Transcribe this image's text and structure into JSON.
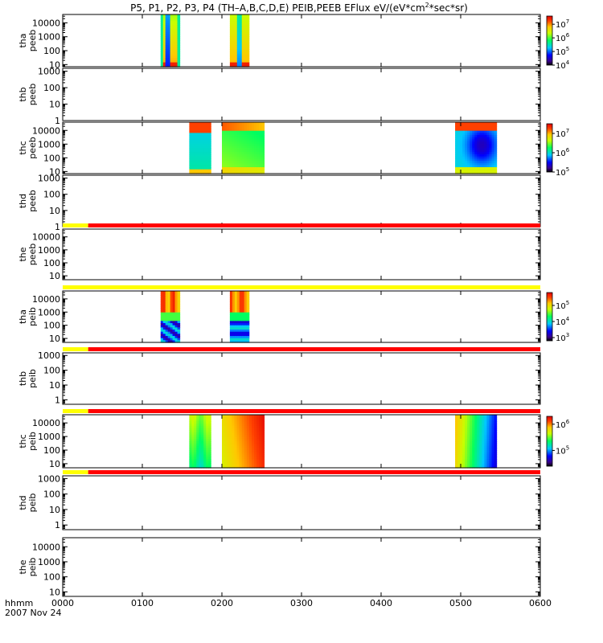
{
  "chart_data": {
    "type": "heatmap",
    "title": {
      "main": "P5, P1, P2, P3, P4 (TH–A,B,C,D,E) PEIB,PEEB EFlux eV/(eV*cm",
      "sup": "2",
      "tail": "*sec*sr)"
    },
    "xaxis": {
      "label": "hhmm",
      "date": "2007 Nov 24",
      "range_hhmm": [
        0,
        600
      ],
      "ticks": [
        "0000",
        "0100",
        "0200",
        "0300",
        "0400",
        "0500",
        "0600"
      ]
    },
    "panels": [
      {
        "label": [
          "tha",
          "peeb"
        ],
        "ylog": true,
        "yrange": [
          7,
          40000
        ],
        "yticks": [
          "10",
          "100",
          "1000",
          "10000"
        ],
        "colorbar": {
          "min_exp": 4,
          "max_exp": 7.6,
          "ticks": [
            "10^4",
            "10^5",
            "10^6",
            "10^7"
          ]
        },
        "blocks": [
          {
            "t": [
              123,
              147
            ],
            "pattern": "tha_peeb_1"
          },
          {
            "t": [
              210,
              234
            ],
            "pattern": "tha_peeb_2"
          }
        ],
        "flag_bar": null
      },
      {
        "label": [
          "thb",
          "peeb"
        ],
        "ylog": true,
        "yrange": [
          1,
          1500
        ],
        "yticks": [
          "1",
          "10",
          "100",
          "1000"
        ],
        "colorbar": null,
        "blocks": [],
        "flag_bar": null
      },
      {
        "label": [
          "thc",
          "peeb"
        ],
        "ylog": true,
        "yrange": [
          7,
          40000
        ],
        "yticks": [
          "10",
          "100",
          "1000",
          "10000"
        ],
        "colorbar": {
          "min_exp": 5,
          "max_exp": 7.5,
          "ticks": [
            "10^5",
            "10^6",
            "10^7"
          ]
        },
        "blocks": [
          {
            "t": [
              159,
              186
            ],
            "pattern": "thc_peeb_1"
          },
          {
            "t": [
              200,
              253
            ],
            "pattern": "thc_peeb_2"
          },
          {
            "t": [
              493,
              545
            ],
            "pattern": "thc_peeb_3"
          }
        ],
        "flag_bar": null
      },
      {
        "label": [
          "thd",
          "peeb"
        ],
        "ylog": true,
        "yrange": [
          1,
          1500
        ],
        "yticks": [
          "1",
          "10",
          "100",
          "1000"
        ],
        "colorbar": null,
        "blocks": [],
        "flag_bar": null
      },
      {
        "label": [
          "the",
          "peeb"
        ],
        "ylog": true,
        "yrange": [
          5,
          40000
        ],
        "yticks": [
          "10",
          "100",
          "1000",
          "10000"
        ],
        "colorbar": null,
        "blocks": [],
        "flag_bar": {
          "segments": [
            {
              "t": [
                0,
                32
              ],
              "color": "#ffff00"
            },
            {
              "t": [
                32,
                600
              ],
              "color": "#ff0000"
            }
          ]
        }
      },
      {
        "label": [
          "tha",
          "peib"
        ],
        "ylog": true,
        "yrange": [
          5,
          40000
        ],
        "yticks": [
          "10",
          "100",
          "1000",
          "10000"
        ],
        "colorbar": {
          "min_exp": 2.8,
          "max_exp": 5.8,
          "ticks": [
            "10^3",
            "10^4",
            "10^5"
          ]
        },
        "blocks": [
          {
            "t": [
              123,
              147
            ],
            "pattern": "tha_peib_1"
          },
          {
            "t": [
              210,
              234
            ],
            "pattern": "tha_peib_2"
          }
        ],
        "flag_bar": {
          "segments": [
            {
              "t": [
                0,
                600
              ],
              "color": "#ffff00"
            }
          ]
        }
      },
      {
        "label": [
          "thb",
          "peib"
        ],
        "ylog": true,
        "yrange": [
          0.5,
          1500
        ],
        "yticks": [
          "1",
          "10",
          "100",
          "1000"
        ],
        "colorbar": null,
        "blocks": [],
        "flag_bar": {
          "segments": [
            {
              "t": [
                0,
                32
              ],
              "color": "#ffff00"
            },
            {
              "t": [
                32,
                600
              ],
              "color": "#ff0000"
            }
          ]
        }
      },
      {
        "label": [
          "thc",
          "peib"
        ],
        "ylog": true,
        "yrange": [
          5,
          40000
        ],
        "yticks": [
          "10",
          "100",
          "1000",
          "10000"
        ],
        "colorbar": {
          "min_exp": 4.4,
          "max_exp": 6.3,
          "ticks": [
            "10^5",
            "10^6"
          ]
        },
        "blocks": [
          {
            "t": [
              159,
              186
            ],
            "pattern": "thc_peib_1"
          },
          {
            "t": [
              200,
              253
            ],
            "pattern": "thc_peib_2"
          },
          {
            "t": [
              493,
              545
            ],
            "pattern": "thc_peib_3"
          }
        ],
        "flag_bar": {
          "segments": [
            {
              "t": [
                0,
                32
              ],
              "color": "#ffff00"
            },
            {
              "t": [
                32,
                600
              ],
              "color": "#ff0000"
            }
          ]
        }
      },
      {
        "label": [
          "thd",
          "peib"
        ],
        "ylog": true,
        "yrange": [
          0.5,
          1500
        ],
        "yticks": [
          "1",
          "10",
          "100",
          "1000"
        ],
        "colorbar": null,
        "blocks": [],
        "flag_bar": {
          "segments": [
            {
              "t": [
                0,
                32
              ],
              "color": "#ffff00"
            },
            {
              "t": [
                32,
                600
              ],
              "color": "#ff0000"
            }
          ]
        }
      },
      {
        "label": [
          "the",
          "peib"
        ],
        "ylog": true,
        "yrange": [
          5,
          40000
        ],
        "yticks": [
          "10",
          "100",
          "1000",
          "10000"
        ],
        "colorbar": null,
        "blocks": [],
        "flag_bar": null
      }
    ]
  }
}
